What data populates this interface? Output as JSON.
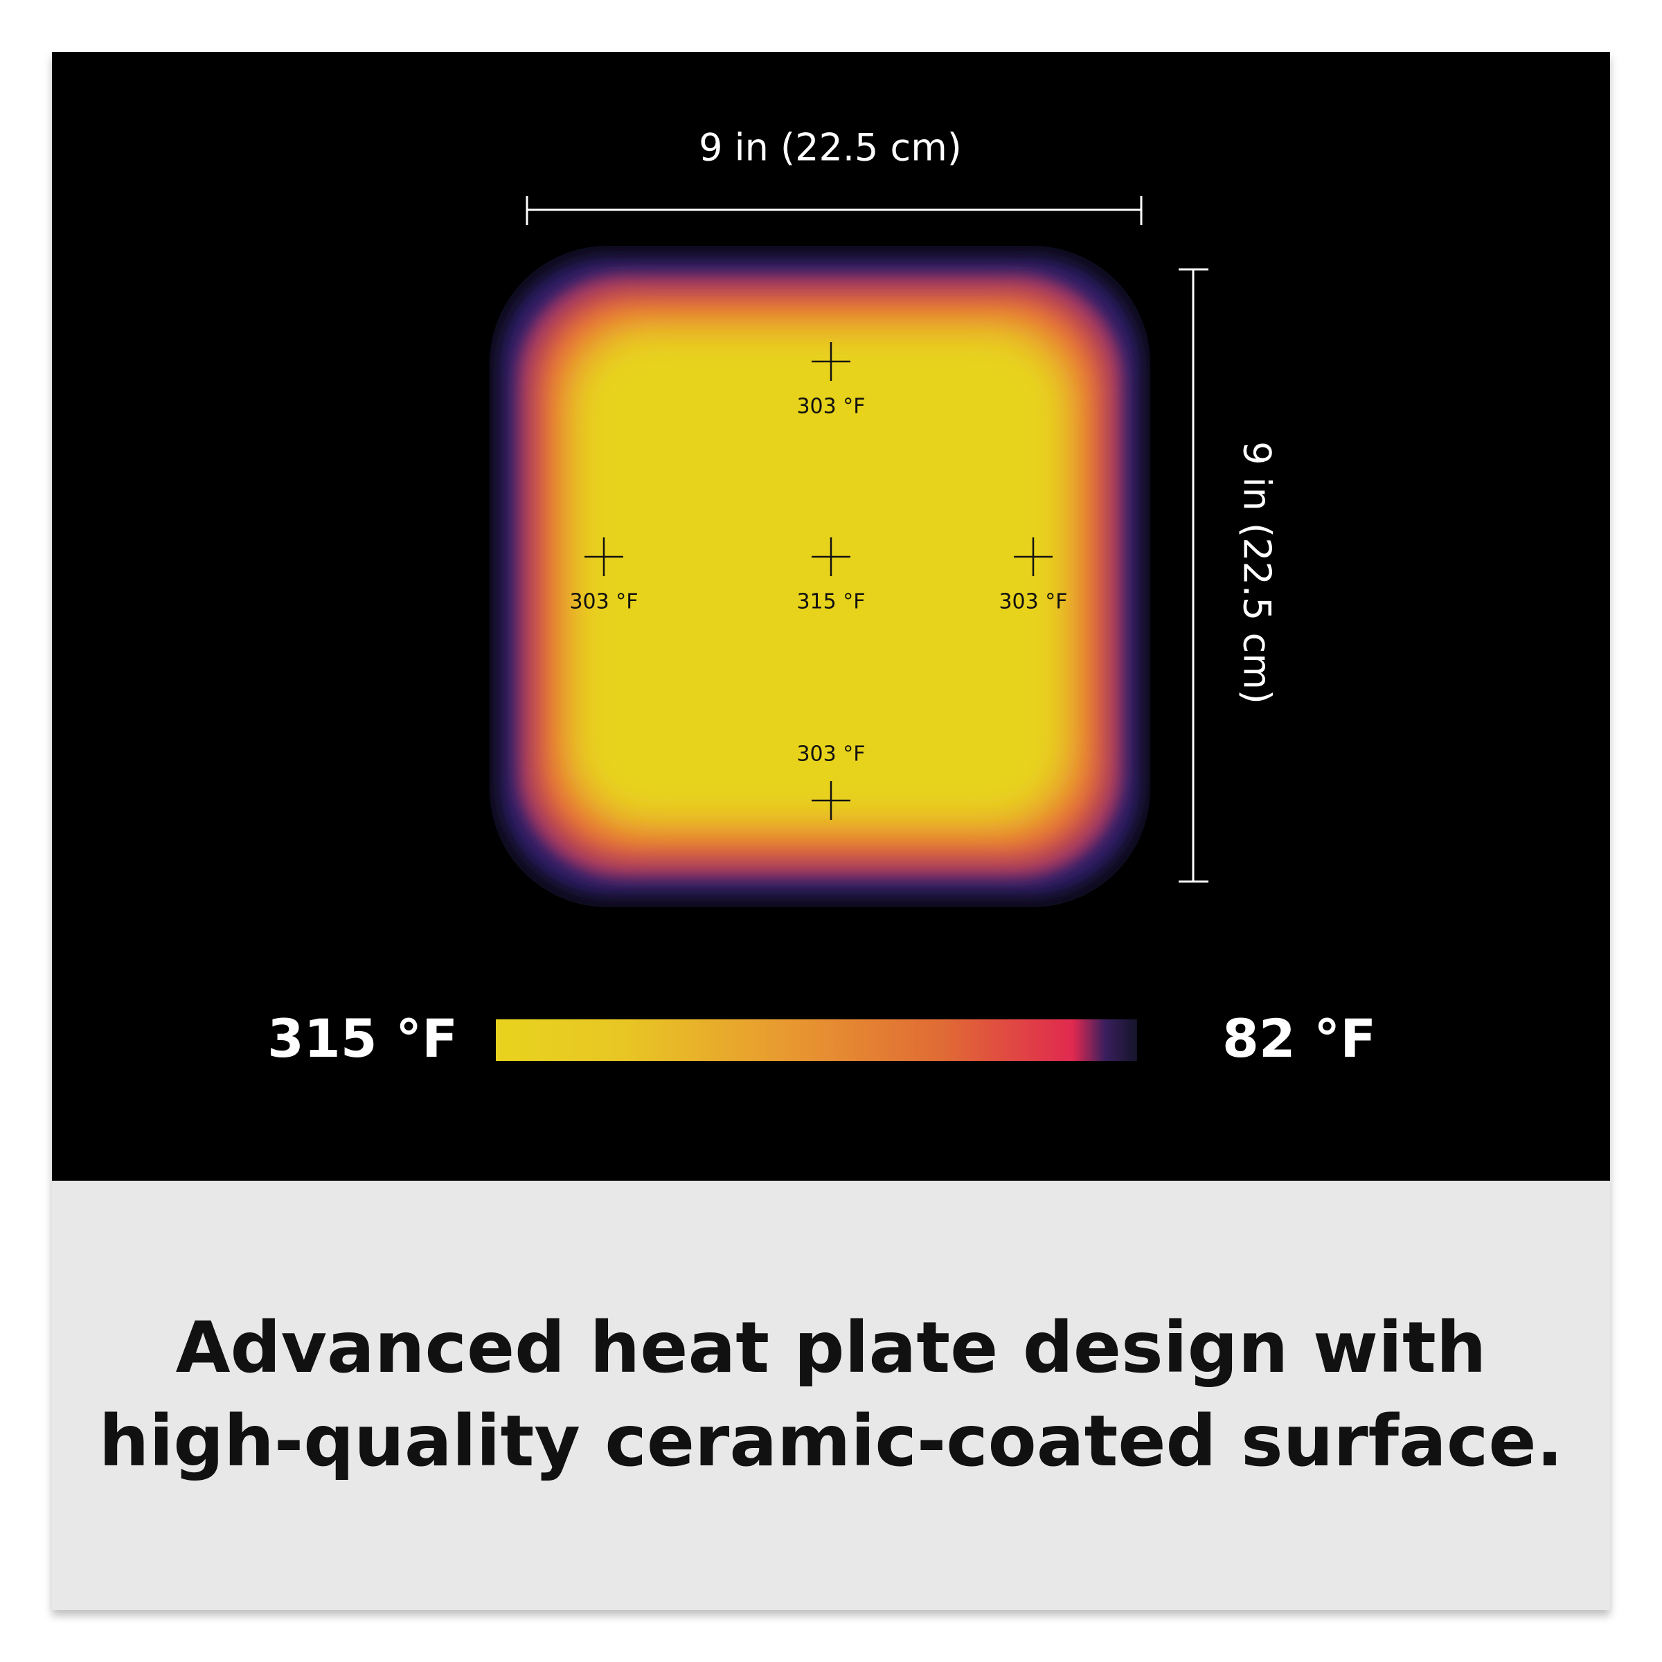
{
  "dimensions": {
    "width": "9 in (22.5 cm)",
    "height": "9 in (22.5 cm)"
  },
  "readings": {
    "top": "303 °F",
    "left": "303 °F",
    "center": "315 °F",
    "right": "303 °F",
    "bottom": "303 °F"
  },
  "scale": {
    "max_label": "315 °F",
    "min_label": "82 °F"
  },
  "caption": {
    "line1": "Advanced heat plate design with",
    "line2": "high-quality ceramic-coated surface."
  }
}
